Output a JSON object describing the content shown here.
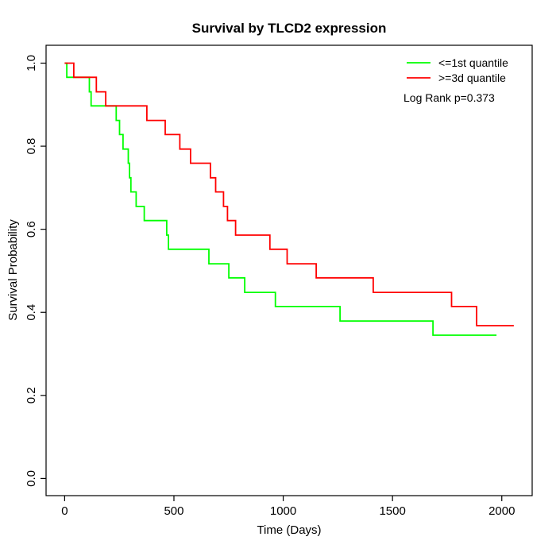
{
  "chart_data": {
    "type": "line",
    "subtype": "kaplan-meier-step",
    "title": "Survival by TLCD2 expression",
    "xlabel": "Time (Days)",
    "ylabel": "Survival Probability",
    "xlim": [
      -85,
      2139
    ],
    "ylim": [
      -0.0413,
      1.043
    ],
    "xticks": [
      0,
      500,
      1000,
      1500,
      2000
    ],
    "xtick_labels": [
      "0",
      "500",
      "1000",
      "1500",
      "2000"
    ],
    "yticks": [
      0.0,
      0.2,
      0.4,
      0.6,
      0.8,
      1.0
    ],
    "ytick_labels": [
      "0.0",
      "0.2",
      "0.4",
      "0.6",
      "0.8",
      "1.0"
    ],
    "grid": false,
    "legend_position": "top-right",
    "annotation": "Log Rank p=0.373",
    "axis_color": "#000000",
    "series": [
      {
        "name": "<=1st quantile",
        "color": "#00ff00",
        "step": true,
        "x": [
          0,
          10,
          113,
          121,
          236,
          251,
          267,
          291,
          297,
          303,
          327,
          364,
          467,
          475,
          660,
          751,
          824,
          964,
          1260,
          1685,
          1976
        ],
        "y": [
          1.0,
          0.966,
          0.931,
          0.897,
          0.862,
          0.828,
          0.793,
          0.759,
          0.724,
          0.69,
          0.655,
          0.621,
          0.586,
          0.552,
          0.517,
          0.483,
          0.448,
          0.414,
          0.379,
          0.345,
          0.345
        ]
      },
      {
        "name": ">=3d quantile",
        "color": "#ff0000",
        "step": true,
        "x": [
          0,
          42,
          145,
          188,
          376,
          460,
          527,
          576,
          667,
          691,
          727,
          745,
          782,
          939,
          1018,
          1151,
          1412,
          1770,
          1885,
          2055
        ],
        "y": [
          1.0,
          0.966,
          0.931,
          0.897,
          0.862,
          0.828,
          0.793,
          0.759,
          0.724,
          0.69,
          0.655,
          0.621,
          0.586,
          0.552,
          0.517,
          0.483,
          0.448,
          0.414,
          0.368,
          0.368
        ]
      }
    ]
  }
}
